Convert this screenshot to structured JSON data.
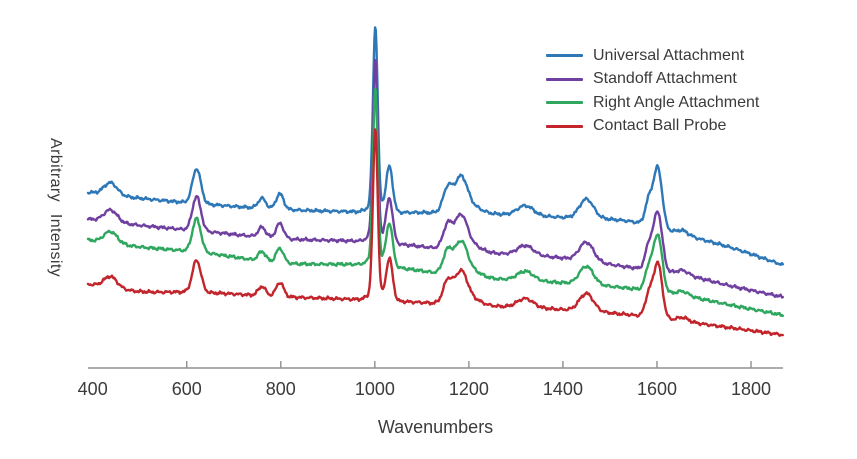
{
  "chart_data": {
    "type": "line",
    "title": "",
    "xlabel": "Wavenumbers",
    "ylabel": "Arbitrary Intensity",
    "x_range": [
      390,
      1868
    ],
    "x_ticks": [
      400,
      600,
      800,
      1000,
      1200,
      1400,
      1600,
      1800
    ],
    "y_axis_visible": false,
    "grid": false,
    "legend_position": "top-right-inside",
    "axis_color": "#8f8f8f",
    "text_color": "#3b3b3b",
    "note": "Four Raman spectra vertically offset; intensity in arbitrary units 0-10",
    "peaks": {
      "centers_cm1": [
        438,
        621,
        760,
        798,
        1001,
        1001,
        1031,
        1155,
        1183,
        1205,
        1320,
        1450,
        1583,
        1602,
        1655
      ],
      "amplitudes": [
        0.35,
        1.0,
        0.29,
        0.44,
        5.1,
        0.25,
        1.3,
        0.7,
        0.95,
        0.2,
        0.28,
        0.55,
        0.7,
        1.7,
        0.12
      ],
      "sigmas_cm1": [
        14,
        9,
        8,
        8,
        5,
        14,
        7,
        10,
        13,
        20,
        17,
        15,
        8,
        9,
        12
      ]
    },
    "baseline_x_cm1": [
      390,
      500,
      620,
      800,
      1000,
      1200,
      1400,
      1550,
      1650,
      1760,
      1868
    ],
    "series": [
      {
        "name": "Universal Attachment",
        "color": "#2e78b8",
        "amp_scale": 1.0,
        "noise_seed": 1.3,
        "baseline_y": [
          5.05,
          4.88,
          4.73,
          4.56,
          4.48,
          4.45,
          4.33,
          4.2,
          3.85,
          3.45,
          2.96
        ]
      },
      {
        "name": "Standoff Attachment",
        "color": "#7040a0",
        "amp_scale": 0.98,
        "noise_seed": 2.9,
        "baseline_y": [
          4.28,
          4.1,
          3.95,
          3.72,
          3.62,
          3.35,
          3.16,
          2.88,
          2.7,
          2.35,
          2.04
        ]
      },
      {
        "name": "Right Angle Attachment",
        "color": "#2fa75f",
        "amp_scale": 0.95,
        "noise_seed": 4.1,
        "baseline_y": [
          3.68,
          3.48,
          3.34,
          3.02,
          2.95,
          2.62,
          2.45,
          2.28,
          2.1,
          1.8,
          1.52
        ]
      },
      {
        "name": "Contact Ball Probe",
        "color": "#c2252b",
        "amp_scale": 0.92,
        "noise_seed": 5.7,
        "baseline_y": [
          2.41,
          2.2,
          2.18,
          2.05,
          1.95,
          1.81,
          1.68,
          1.52,
          1.35,
          1.15,
          0.95
        ]
      }
    ]
  }
}
